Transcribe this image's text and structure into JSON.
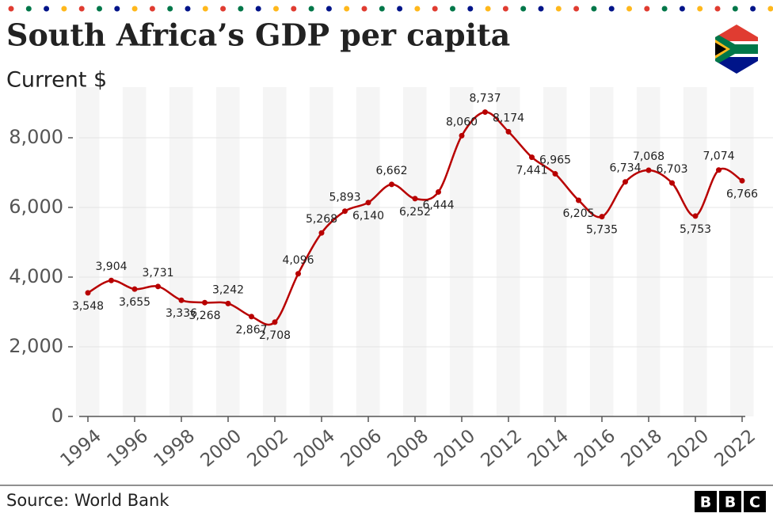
{
  "chart_data": {
    "type": "line",
    "title": "South Africa’s GDP per capita",
    "subtitle": "Current $",
    "source": "Source: World Bank",
    "branding": [
      "B",
      "B",
      "C"
    ],
    "x": [
      1994,
      1995,
      1996,
      1997,
      1998,
      1999,
      2000,
      2001,
      2002,
      2003,
      2004,
      2005,
      2006,
      2007,
      2008,
      2009,
      2010,
      2011,
      2012,
      2013,
      2014,
      2015,
      2016,
      2017,
      2018,
      2019,
      2020,
      2021,
      2022
    ],
    "values": [
      3548,
      3904,
      3655,
      3731,
      3336,
      3268,
      3242,
      2867,
      2708,
      4096,
      5268,
      5893,
      6140,
      6662,
      6252,
      6444,
      8060,
      8737,
      8174,
      7441,
      6965,
      6205,
      5735,
      6734,
      7068,
      6703,
      5753,
      7074,
      6766
    ],
    "value_labels": [
      "3,548",
      "3,904",
      "3,655",
      "3,731",
      "3,336",
      "3,268",
      "3,242",
      "2,867",
      "2,708",
      "4,096",
      "5,268",
      "5,893",
      "6,140",
      "6,662",
      "6,252",
      "6,444",
      "8,060",
      "8,737",
      "8,174",
      "7,441",
      "6,965",
      "6,205",
      "5,735",
      "6,734",
      "7,068",
      "6,703",
      "5,753",
      "7,074",
      "6,766"
    ],
    "color": "#b80000",
    "xlim": [
      1994,
      2022
    ],
    "xticks": [
      1994,
      1996,
      1998,
      2000,
      2002,
      2004,
      2006,
      2008,
      2010,
      2012,
      2014,
      2016,
      2018,
      2020,
      2022
    ],
    "ylim": [
      0,
      9000
    ],
    "yticks": [
      0,
      {
        "value": 2000,
        "label": "2,000"
      },
      {
        "value": 4000,
        "label": "4,000"
      },
      {
        "value": 6000,
        "label": "6,000"
      },
      {
        "value": 8000,
        "label": "8,000"
      }
    ],
    "grid": true
  }
}
